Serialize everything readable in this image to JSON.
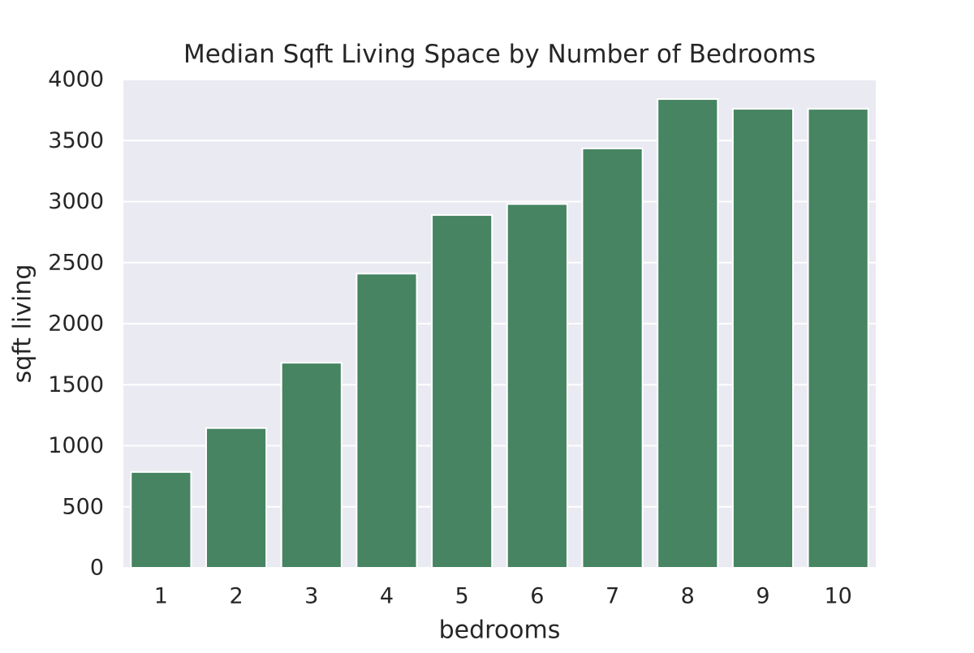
{
  "chart_data": {
    "type": "bar",
    "title": "Median Sqft Living Space by Number of Bedrooms",
    "xlabel": "bedrooms",
    "ylabel": "sqft living",
    "categories": [
      "1",
      "2",
      "3",
      "4",
      "5",
      "6",
      "7",
      "8",
      "9",
      "10"
    ],
    "values": [
      785,
      1145,
      1680,
      2410,
      2890,
      2980,
      3435,
      3840,
      3760,
      3760
    ],
    "ylim": [
      0,
      4000
    ],
    "yticks": [
      0,
      500,
      1000,
      1500,
      2000,
      2500,
      3000,
      3500,
      4000
    ],
    "grid": true,
    "legend": "none",
    "colors": {
      "bar": "#468462",
      "plot_background": "#eaeaf2",
      "grid": "#ffffff",
      "text": "#262626"
    }
  }
}
